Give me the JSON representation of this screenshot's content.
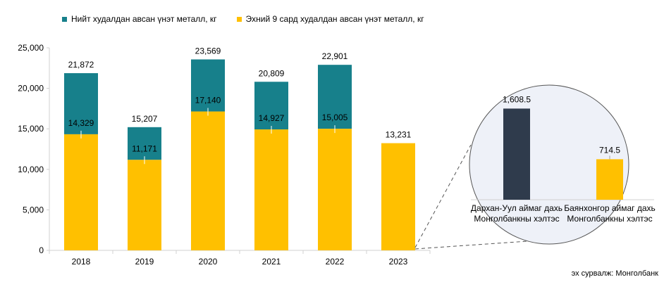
{
  "legend": {
    "total_label": "Нийт худалдан авсан үнэт металл, кг",
    "recent_label": "Эхний 9 сард худалдан авсан үнэт металл, кг"
  },
  "source": "эх сурвалж: Монголбанк",
  "colors": {
    "total": "#17808b",
    "recent": "#ffc000",
    "darkhan": "#2f3b4c",
    "zoom_fill": "#eef1f8",
    "zoom_stroke": "#555555"
  },
  "chart_data": [
    {
      "type": "bar",
      "categories": [
        "2018",
        "2019",
        "2020",
        "2021",
        "2022",
        "2023"
      ],
      "series": [
        {
          "name": "Нийт худалдан авсан үнэт металл, кг",
          "values": [
            21872,
            15207,
            23569,
            20809,
            22901,
            null
          ]
        },
        {
          "name": "Эхний 9 сард худалдан авсан үнэт металл, кг",
          "values": [
            14329,
            11171,
            17140,
            14927,
            15005,
            13231
          ]
        }
      ],
      "total_labels": [
        "21,872",
        "15,207",
        "23,569",
        "20,809",
        "22,901",
        "13,231"
      ],
      "recent_labels": [
        "14,329",
        "11,171",
        "17,140",
        "14,927",
        "15,005",
        ""
      ],
      "ylim": [
        0,
        25000
      ],
      "yticks": [
        0,
        5000,
        10000,
        15000,
        20000,
        25000
      ],
      "ytick_labels": [
        "0",
        "5,000",
        "10,000",
        "15,000",
        "20,000",
        "25,000"
      ],
      "grid": false,
      "legend_position": "top-left"
    },
    {
      "type": "bar",
      "categories": [
        "Дархан-Уул аймаг дахь Монголбанкны хэлтэс",
        "Баянхонгор аймаг дахь Монголбанкны хэлтэс"
      ],
      "category_lines": [
        [
          "Дархан-Уул аймаг дахь",
          "Монголбанкны хэлтэс"
        ],
        [
          "Баянхонгор аймаг дахь",
          "Монголбанкны хэлтэс"
        ]
      ],
      "values": [
        1608.5,
        714.5
      ],
      "value_labels": [
        "1,608.5",
        "714.5"
      ],
      "ylim": [
        0,
        1750
      ],
      "detail_of": "2023"
    }
  ]
}
